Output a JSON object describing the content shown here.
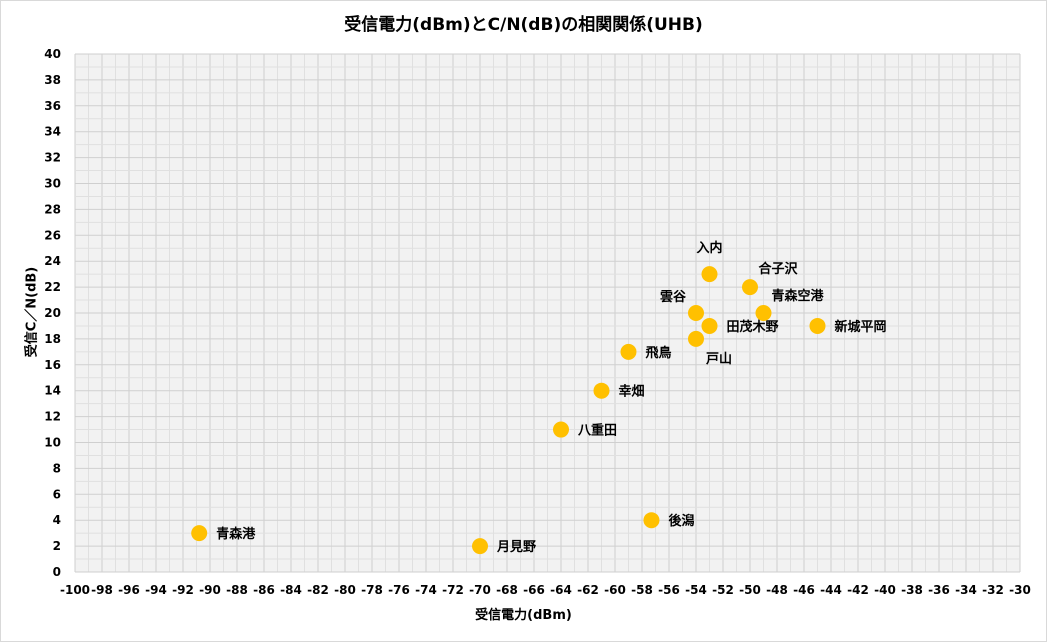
{
  "chart_data": {
    "type": "scatter",
    "title": "受信電力(dBm)とC/N(dB)の相関関係(UHB)",
    "xlabel": "受信電力(dBm)",
    "ylabel": "受信C／N(dB)",
    "xlim": [
      -100,
      -30
    ],
    "ylim": [
      0,
      40
    ],
    "x_tick_step": 2,
    "y_tick_step": 2,
    "x_tick_labels": [
      "-100",
      "-98",
      "-96",
      "-94",
      "-92",
      "-90",
      "-88",
      "-86",
      "-84",
      "-82",
      "-80",
      "-78",
      "-76",
      "-74",
      "-72",
      "-70",
      "-68",
      "-66",
      "-64",
      "-62",
      "-60",
      "-58",
      "-56",
      "-54",
      "-52",
      "-50",
      "-48",
      "-46",
      "-44",
      "-42",
      "-40",
      "-38",
      "-36",
      "-34",
      "-32",
      "-30"
    ],
    "y_tick_labels": [
      "0",
      "2",
      "4",
      "6",
      "8",
      "10",
      "12",
      "14",
      "16",
      "18",
      "20",
      "22",
      "24",
      "26",
      "28",
      "30",
      "32",
      "34",
      "36",
      "38",
      "40"
    ],
    "grid": true,
    "marker_color": "#FFC000",
    "points": [
      {
        "label": "青森港",
        "x": -90.8,
        "y": 3
      },
      {
        "label": "月見野",
        "x": -70,
        "y": 2
      },
      {
        "label": "後潟",
        "x": -57.3,
        "y": 4
      },
      {
        "label": "八重田",
        "x": -64,
        "y": 11
      },
      {
        "label": "幸畑",
        "x": -61,
        "y": 14
      },
      {
        "label": "飛鳥",
        "x": -59,
        "y": 17
      },
      {
        "label": "雲谷",
        "x": -54,
        "y": 20
      },
      {
        "label": "入内",
        "x": -53,
        "y": 23
      },
      {
        "label": "戸山",
        "x": -54,
        "y": 18
      },
      {
        "label": "田茂木野",
        "x": -53,
        "y": 19
      },
      {
        "label": "合子沢",
        "x": -50,
        "y": 22
      },
      {
        "label": "青森空港",
        "x": -49,
        "y": 20
      },
      {
        "label": "新城平岡",
        "x": -45,
        "y": 19
      }
    ]
  }
}
